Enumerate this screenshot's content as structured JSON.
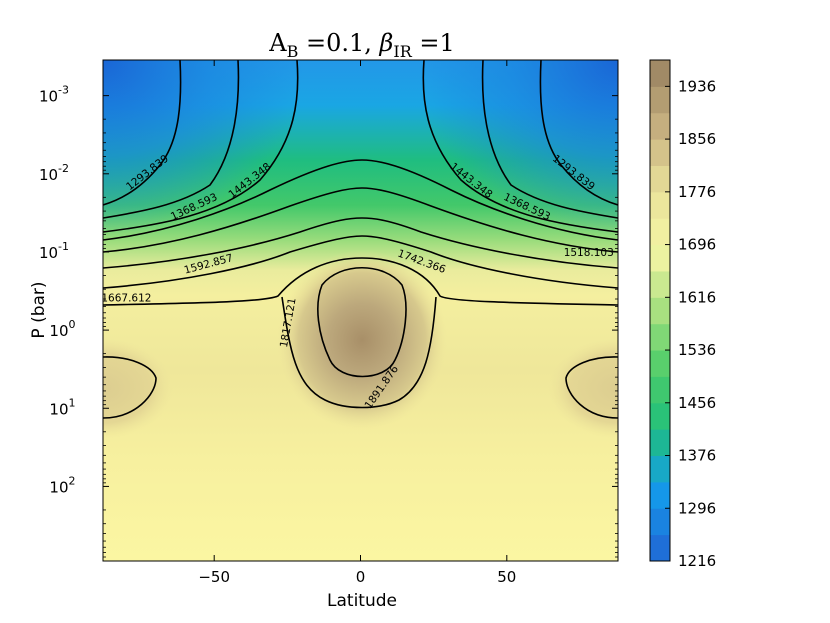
{
  "chart_data": {
    "type": "heatmap",
    "title": {
      "prefix_letter": "A",
      "prefix_sub": "B",
      "prefix_rest": " =0.1, ",
      "beta": "β",
      "beta_sub": "IR",
      "beta_rest": " =1"
    },
    "xlabel": "Latitude",
    "ylabel": "P (bar)",
    "xlim": [
      -88,
      88
    ],
    "y_scale": "log",
    "y_inverted": true,
    "ylim": [
      0.00035,
      900
    ],
    "x_ticks": [
      {
        "value": -50,
        "label": "−50"
      },
      {
        "value": 0,
        "label": "0"
      },
      {
        "value": 50,
        "label": "50"
      }
    ],
    "y_ticks": [
      {
        "value": 0.001,
        "base": "10",
        "exp": "-3"
      },
      {
        "value": 0.01,
        "base": "10",
        "exp": "-2"
      },
      {
        "value": 0.1,
        "base": "10",
        "exp": "-1"
      },
      {
        "value": 1,
        "base": "10",
        "exp": "0"
      },
      {
        "value": 10,
        "base": "10",
        "exp": "1"
      },
      {
        "value": 100,
        "base": "10",
        "exp": "2"
      }
    ],
    "colorbar": {
      "range": [
        1216,
        1976
      ],
      "ticks": [
        "1216",
        "1296",
        "1376",
        "1456",
        "1536",
        "1616",
        "1696",
        "1776",
        "1856",
        "1936"
      ],
      "colors": [
        "#1f6fd8",
        "#149ceb",
        "#1fbf7c",
        "#4fcd69",
        "#a8e080",
        "#f5f5a4",
        "#e9e29a",
        "#c9b482",
        "#a18a66"
      ]
    },
    "contour_levels": [
      1293.839,
      1368.593,
      1443.348,
      1518.103,
      1592.857,
      1667.612,
      1742.366,
      1817.121,
      1891.876
    ],
    "contour_labels": [
      {
        "text": "1293.839",
        "lat": -73,
        "p": 0.0095,
        "angle": -38
      },
      {
        "text": "1293.839",
        "lat": 73,
        "p": 0.0095,
        "angle": 38
      },
      {
        "text": "1368.593",
        "lat": -57,
        "p": 0.026,
        "angle": -25
      },
      {
        "text": "1368.593",
        "lat": 57,
        "p": 0.026,
        "angle": 25
      },
      {
        "text": "1443.348",
        "lat": -38,
        "p": 0.012,
        "angle": -38
      },
      {
        "text": "1443.348",
        "lat": 38,
        "p": 0.012,
        "angle": 38
      },
      {
        "text": "1518.103",
        "lat": 78,
        "p": 0.1,
        "angle": 0
      },
      {
        "text": "1592.857",
        "lat": -52,
        "p": 0.14,
        "angle": -15
      },
      {
        "text": "1667.612",
        "lat": -80,
        "p": 0.38,
        "angle": 0
      },
      {
        "text": "1742.366",
        "lat": 21,
        "p": 0.13,
        "angle": 20
      },
      {
        "text": "1817.121",
        "lat": -25,
        "p": 0.8,
        "angle": -80
      },
      {
        "text": "1891.876",
        "lat": 7,
        "p": 5.3,
        "angle": -55
      }
    ]
  }
}
